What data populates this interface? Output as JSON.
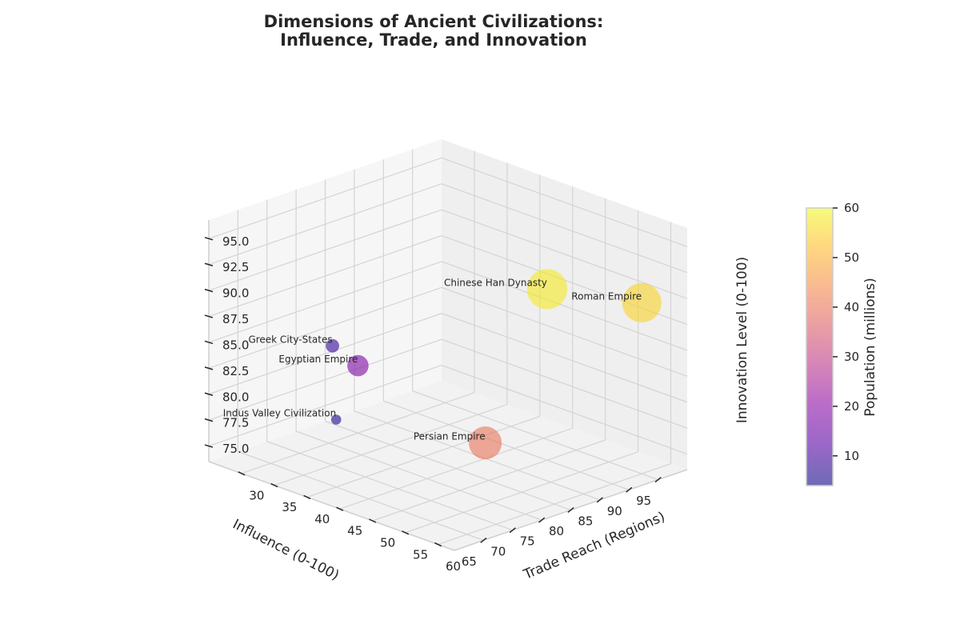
{
  "chart_data": {
    "type": "scatter",
    "projection": "3d",
    "title_line1": "Dimensions of Ancient Civilizations:",
    "title_line2": "Influence, Trade, and Innovation",
    "xlabel": "Influence (0-100)",
    "ylabel": "Trade Reach (Regions)",
    "zlabel": "Innovation Level (0-100)",
    "xticks": [
      65,
      70,
      75,
      80,
      85,
      90,
      95
    ],
    "yticks": [
      30,
      35,
      40,
      45,
      50,
      55,
      60
    ],
    "zticks": [
      "75.0",
      "77.5",
      "80.0",
      "82.5",
      "85.0",
      "87.5",
      "90.0",
      "92.5",
      "95.0"
    ],
    "grid": true,
    "points": [
      {
        "name": "Roman Empire",
        "influence": 95,
        "trade": 60,
        "innovation": 90,
        "population": 55
      },
      {
        "name": "Chinese Han Dynasty",
        "influence": 90,
        "trade": 50,
        "innovation": 90,
        "population": 58
      },
      {
        "name": "Egyptian Empire",
        "influence": 80,
        "trade": 30,
        "innovation": 80,
        "population": 18
      },
      {
        "name": "Persian Empire",
        "influence": 85,
        "trade": 45,
        "innovation": 75,
        "population": 40
      },
      {
        "name": "Greek City-States",
        "influence": 70,
        "trade": 35,
        "innovation": 85,
        "population": 8
      },
      {
        "name": "Indus Valley Civilization",
        "influence": 65,
        "trade": 40,
        "innovation": 80,
        "population": 5
      }
    ],
    "colorbar": {
      "label": "Population (millions)",
      "ticks": [
        10,
        20,
        30,
        40,
        50,
        60
      ],
      "range": [
        4,
        60
      ],
      "colormap": "plasma",
      "alpha": 0.6
    }
  }
}
